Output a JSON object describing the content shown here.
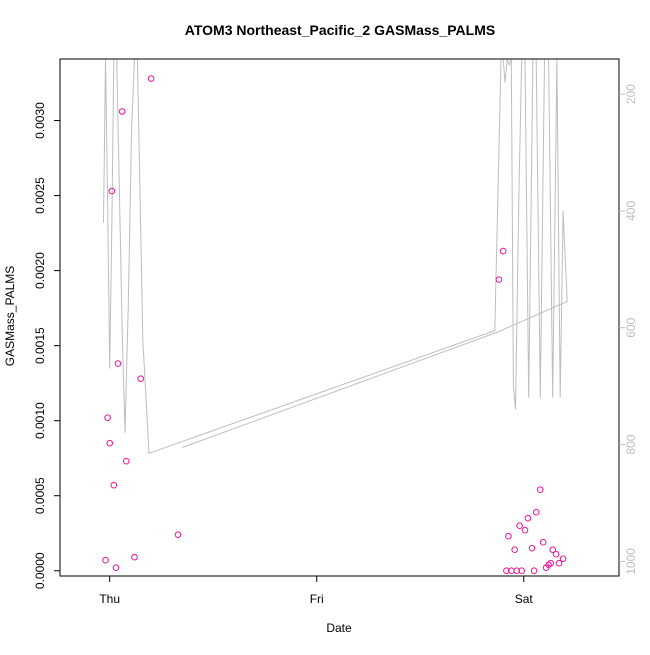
{
  "chart_data": {
    "type": "scatter",
    "title": "ATOM3 Northeast_Pacific_2 GASMass_PALMS",
    "xlabel": "Date",
    "ylabel": "GASMass_PALMS",
    "x_ticks": [
      "Thu",
      "Fri",
      "Sat"
    ],
    "y_ticks": [
      "0.0000",
      "0.0005",
      "0.0010",
      "0.0015",
      "0.0020",
      "0.0025",
      "0.0030"
    ],
    "y2_ticks": [
      "200",
      "400",
      "600",
      "800",
      "1000"
    ],
    "xlim": [
      -0.27,
      1.08
    ],
    "ylim": [
      -3.5e-05,
      0.00341
    ],
    "y2lim": [
      1025,
      140
    ],
    "point_color": "#ee1493",
    "line_color": "#bebebe",
    "points": [
      {
        "x": -0.16,
        "y": 7e-05
      },
      {
        "x": -0.155,
        "y": 0.00102
      },
      {
        "x": -0.15,
        "y": 0.00085
      },
      {
        "x": -0.145,
        "y": 0.00253
      },
      {
        "x": -0.14,
        "y": 0.00057
      },
      {
        "x": -0.135,
        "y": 2e-05
      },
      {
        "x": -0.13,
        "y": 0.00138
      },
      {
        "x": -0.12,
        "y": 0.00306
      },
      {
        "x": -0.11,
        "y": 0.00073
      },
      {
        "x": -0.09,
        "y": 9e-05
      },
      {
        "x": -0.075,
        "y": 0.00128
      },
      {
        "x": -0.05,
        "y": 0.00328
      },
      {
        "x": 0.015,
        "y": 0.00024
      },
      {
        "x": 0.79,
        "y": 0.00194
      },
      {
        "x": 0.8,
        "y": 0.00213
      },
      {
        "x": 0.808,
        "y": 0.0
      },
      {
        "x": 0.813,
        "y": 0.00023
      },
      {
        "x": 0.82,
        "y": 0.0
      },
      {
        "x": 0.828,
        "y": 0.00014
      },
      {
        "x": 0.833,
        "y": 0.0
      },
      {
        "x": 0.84,
        "y": 0.0003
      },
      {
        "x": 0.845,
        "y": 0.0
      },
      {
        "x": 0.853,
        "y": 0.00027
      },
      {
        "x": 0.86,
        "y": 0.00035
      },
      {
        "x": 0.87,
        "y": 0.00015
      },
      {
        "x": 0.875,
        "y": 0.0
      },
      {
        "x": 0.88,
        "y": 0.00039
      },
      {
        "x": 0.89,
        "y": 0.00054
      },
      {
        "x": 0.897,
        "y": 0.00019
      },
      {
        "x": 0.904,
        "y": 2e-05
      },
      {
        "x": 0.91,
        "y": 4e-05
      },
      {
        "x": 0.915,
        "y": 5e-05
      },
      {
        "x": 0.92,
        "y": 0.00014
      },
      {
        "x": 0.928,
        "y": 0.00011
      },
      {
        "x": 0.935,
        "y": 5e-05
      },
      {
        "x": 0.945,
        "y": 8e-05
      }
    ],
    "pressure_line": [
      {
        "x": -0.165,
        "y": 420
      },
      {
        "x": -0.16,
        "y": 140
      },
      {
        "x": -0.155,
        "y": 380
      },
      {
        "x": -0.15,
        "y": 670
      },
      {
        "x": -0.145,
        "y": 430
      },
      {
        "x": -0.14,
        "y": 140
      },
      {
        "x": -0.133,
        "y": 140
      },
      {
        "x": -0.127,
        "y": 350
      },
      {
        "x": -0.12,
        "y": 600
      },
      {
        "x": -0.113,
        "y": 780
      },
      {
        "x": -0.105,
        "y": 560
      },
      {
        "x": -0.097,
        "y": 260
      },
      {
        "x": -0.09,
        "y": 140
      },
      {
        "x": -0.083,
        "y": 140
      },
      {
        "x": -0.077,
        "y": 360
      },
      {
        "x": -0.07,
        "y": 620
      },
      {
        "x": -0.055,
        "y": 815
      },
      {
        "x": 0.78,
        "y": 605
      },
      {
        "x": 0.795,
        "y": 140
      },
      {
        "x": 0.8,
        "y": 140
      },
      {
        "x": 0.805,
        "y": 180
      },
      {
        "x": 0.81,
        "y": 140
      },
      {
        "x": 0.815,
        "y": 150
      },
      {
        "x": 0.82,
        "y": 140
      },
      {
        "x": 0.825,
        "y": 700
      },
      {
        "x": 0.83,
        "y": 740
      },
      {
        "x": 0.838,
        "y": 380
      },
      {
        "x": 0.845,
        "y": 140
      },
      {
        "x": 0.853,
        "y": 140
      },
      {
        "x": 0.862,
        "y": 720
      },
      {
        "x": 0.872,
        "y": 140
      },
      {
        "x": 0.88,
        "y": 140
      },
      {
        "x": 0.89,
        "y": 720
      },
      {
        "x": 0.9,
        "y": 140
      },
      {
        "x": 0.91,
        "y": 140
      },
      {
        "x": 0.92,
        "y": 720
      },
      {
        "x": 0.93,
        "y": 140
      },
      {
        "x": 0.938,
        "y": 720
      },
      {
        "x": 0.945,
        "y": 400
      },
      {
        "x": 0.955,
        "y": 555
      },
      {
        "x": 0.785,
        "y": 608
      },
      {
        "x": 0.025,
        "y": 805
      }
    ]
  }
}
